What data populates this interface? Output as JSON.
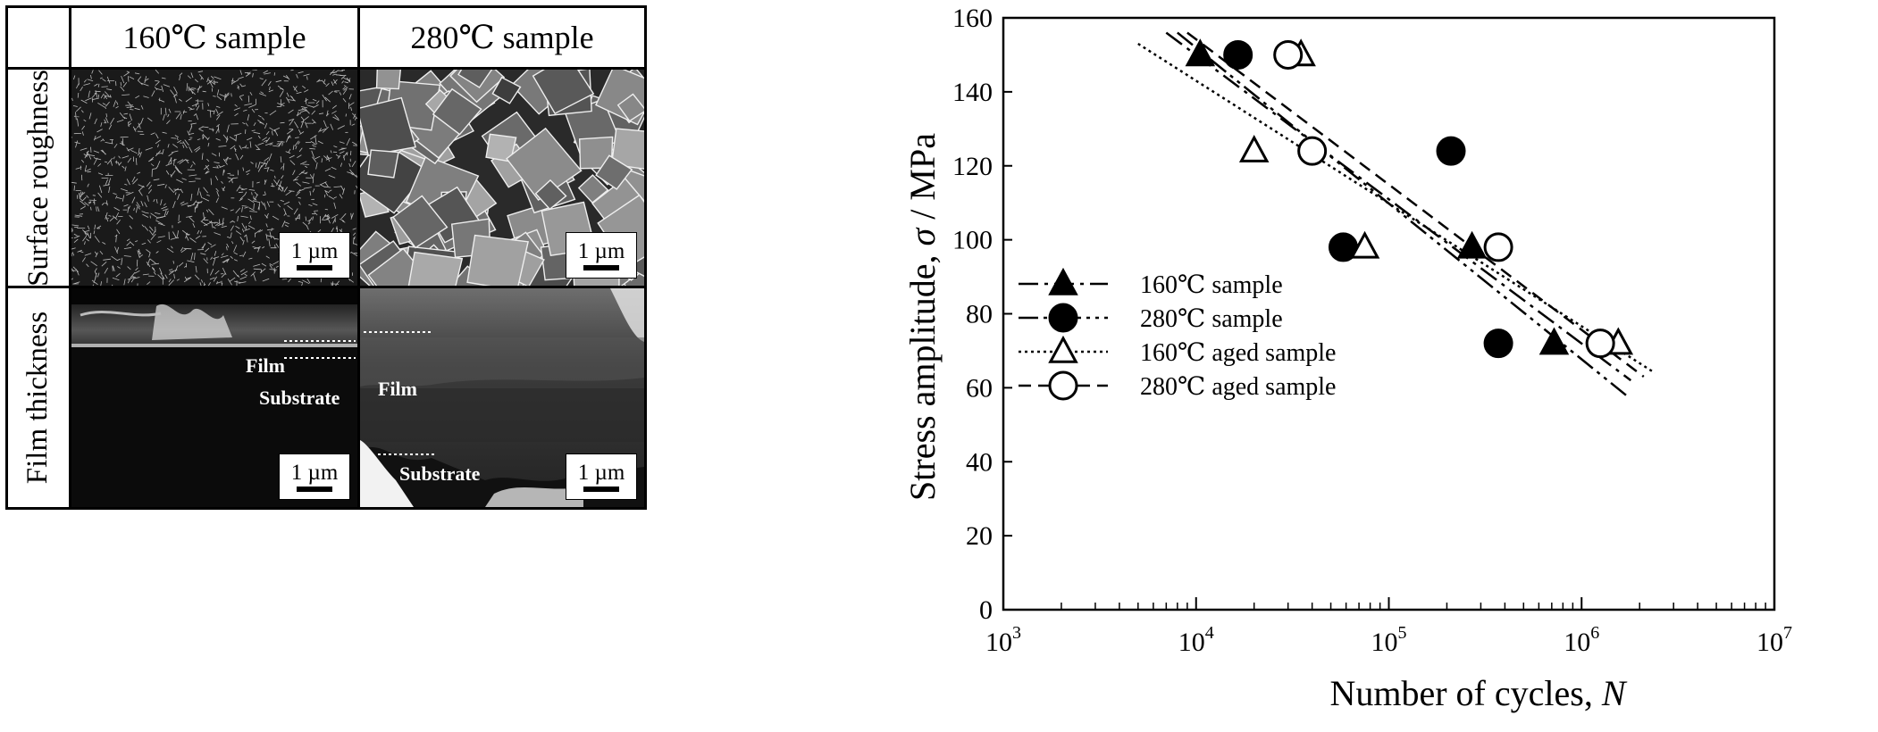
{
  "grid": {
    "col_headers": [
      "160℃ sample",
      "280℃ sample"
    ],
    "row_headers": [
      "Surface roughness",
      "Film thickness"
    ],
    "scale_bar_label": "1 µm",
    "labels": {
      "film": "Film",
      "substrate": "Substrate"
    }
  },
  "chart_data": {
    "type": "scatter",
    "xlabel": "Number of cycles, ",
    "xlabel_symbol": "N",
    "ylabel": "Stress amplitude, ",
    "ylabel_symbol": "σ",
    "ylabel_unit": " / MPa",
    "x_scale": "log",
    "xlim": [
      1000,
      10000000
    ],
    "ylim": [
      0,
      160
    ],
    "x_ticks": [
      {
        "base": "10",
        "exp": "3",
        "value": 1000
      },
      {
        "base": "10",
        "exp": "4",
        "value": 10000
      },
      {
        "base": "10",
        "exp": "5",
        "value": 100000
      },
      {
        "base": "10",
        "exp": "6",
        "value": 1000000
      },
      {
        "base": "10",
        "exp": "7",
        "value": 10000000
      }
    ],
    "y_ticks": [
      "0",
      "20",
      "40",
      "60",
      "80",
      "100",
      "120",
      "140",
      "160"
    ],
    "grid": false,
    "legend_position": "bottom-left",
    "series": [
      {
        "name": "160℃ sample",
        "marker": "filled-triangle",
        "line": "dash-dot",
        "points": [
          [
            10500,
            150
          ],
          [
            270000,
            98
          ],
          [
            720000,
            72
          ]
        ],
        "fit": [
          [
            7000,
            156
          ],
          [
            1800000,
            62
          ]
        ]
      },
      {
        "name": "280℃ sample",
        "marker": "filled-circle",
        "line": "dash-dot-dot",
        "points": [
          [
            16500,
            150
          ],
          [
            210000,
            124
          ],
          [
            58000,
            98
          ],
          [
            370000,
            72
          ]
        ],
        "fit": [
          [
            8000,
            156
          ],
          [
            1700000,
            58
          ]
        ]
      },
      {
        "name": "160℃  aged sample",
        "marker": "open-triangle",
        "line": "dotted",
        "points": [
          [
            35000,
            150
          ],
          [
            20000,
            124
          ],
          [
            75000,
            98
          ],
          [
            1550000,
            72
          ]
        ],
        "fit": [
          [
            5000,
            153
          ],
          [
            2400000,
            64
          ]
        ]
      },
      {
        "name": "280℃ aged sample",
        "marker": "open-circle",
        "line": "dashed",
        "points": [
          [
            30000,
            150
          ],
          [
            40000,
            124
          ],
          [
            370000,
            98
          ],
          [
            1250000,
            72
          ]
        ],
        "fit": [
          [
            9000,
            156
          ],
          [
            2100000,
            63
          ]
        ]
      }
    ]
  }
}
